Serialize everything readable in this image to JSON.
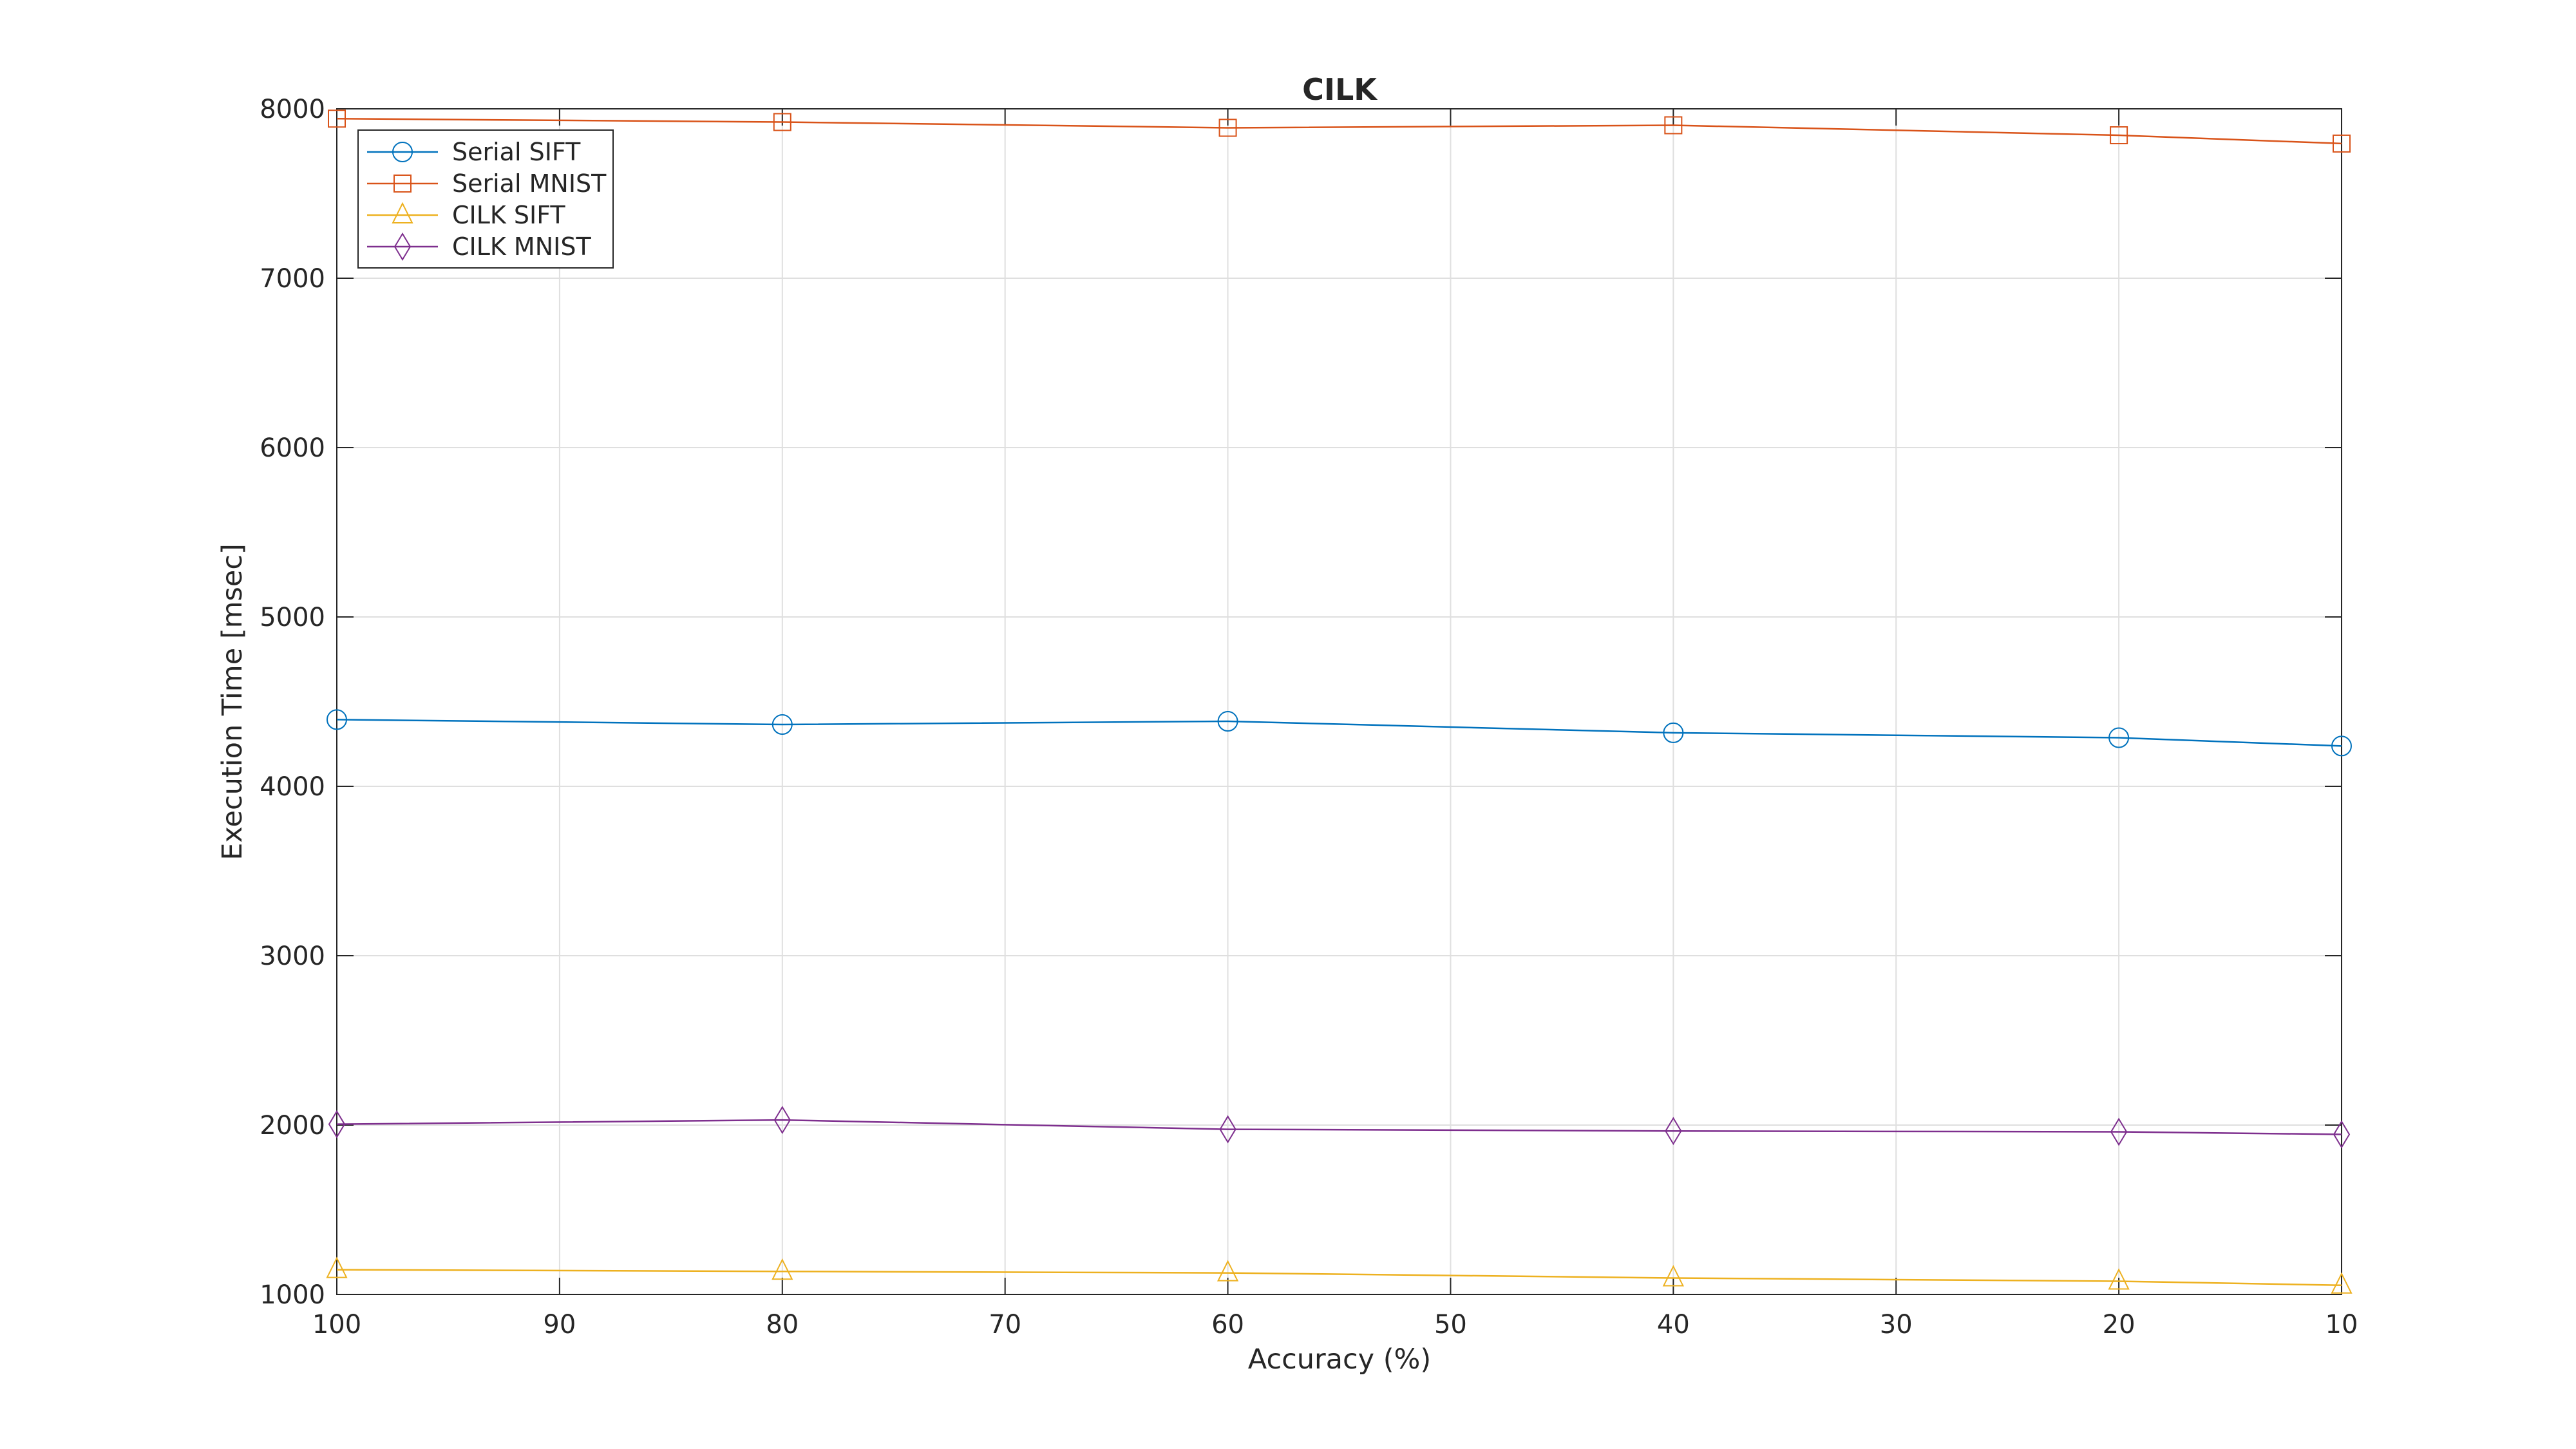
{
  "chart_data": {
    "type": "line",
    "title": "CILK",
    "xlabel": "Accuracy (%)",
    "ylabel": "Execution Time [msec]",
    "x": [
      100,
      80,
      60,
      40,
      20,
      10
    ],
    "xlim": [
      100,
      10
    ],
    "x_reversed": true,
    "xticks": [
      100,
      90,
      80,
      70,
      60,
      50,
      40,
      30,
      20,
      10
    ],
    "ylim": [
      1000,
      8000
    ],
    "yticks": [
      1000,
      2000,
      3000,
      4000,
      5000,
      6000,
      7000,
      8000
    ],
    "grid": true,
    "legend_position": "top-left",
    "series": [
      {
        "name": "Serial SIFT",
        "color": "#0072BD",
        "marker": "circle",
        "values": [
          4394,
          4365,
          4384,
          4316,
          4287,
          4238
        ]
      },
      {
        "name": "Serial MNIST",
        "color": "#D95319",
        "marker": "square",
        "values": [
          7942,
          7922,
          7888,
          7903,
          7844,
          7795
        ]
      },
      {
        "name": "CILK SIFT",
        "color": "#EDB120",
        "marker": "triangle",
        "values": [
          1146,
          1136,
          1127,
          1097,
          1078,
          1054
        ]
      },
      {
        "name": "CILK MNIST",
        "color": "#7E2F8E",
        "marker": "diamond",
        "values": [
          2005,
          2030,
          1975,
          1965,
          1960,
          1945
        ]
      }
    ]
  }
}
